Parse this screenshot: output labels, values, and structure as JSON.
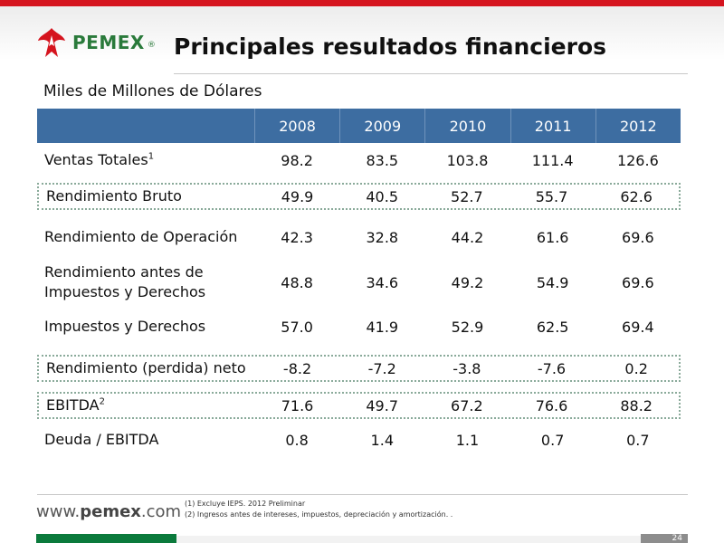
{
  "header": {
    "logo_text": "PEMEX",
    "logo_reg": "®",
    "title": "Principales resultados financieros"
  },
  "subtitle": "Miles de Millones de Dólares",
  "table": {
    "years": [
      "2008",
      "2009",
      "2010",
      "2011",
      "2012"
    ],
    "rows": [
      {
        "label": "Ventas Totales",
        "sup": "1",
        "values": [
          "98.2",
          "83.5",
          "103.8",
          "111.4",
          "126.6"
        ]
      },
      {
        "label": "Rendimiento Bruto",
        "values": [
          "49.9",
          "40.5",
          "52.7",
          "55.7",
          "62.6"
        ]
      },
      {
        "label": "Rendimiento de Operación",
        "values": [
          "42.3",
          "32.8",
          "44.2",
          "61.6",
          "69.6"
        ]
      },
      {
        "label_line1": "Rendimiento antes de",
        "label_line2": "Impuestos y Derechos",
        "values": [
          "48.8",
          "34.6",
          "49.2",
          "54.9",
          "69.6"
        ]
      },
      {
        "label": "Impuestos y Derechos",
        "values": [
          "57.0",
          "41.9",
          "52.9",
          "62.5",
          "69.4"
        ]
      },
      {
        "label": "Rendimiento (perdida) neto",
        "values": [
          "-8.2",
          "-7.2",
          "-3.8",
          "-7.6",
          "0.2"
        ]
      },
      {
        "label": "EBITDA",
        "sup": "2",
        "values": [
          "71.6",
          "49.7",
          "67.2",
          "76.6",
          "88.2"
        ]
      },
      {
        "label": "Deuda / EBITDA",
        "values": [
          "0.8",
          "1.4",
          "1.1",
          "0.7",
          "0.7"
        ]
      }
    ]
  },
  "footer": {
    "url_prefix": "www.",
    "url_domain": "pemex",
    "url_suffix": ".com",
    "note1": "(1)  Excluye IEPS. 2012 Preliminar",
    "note2": "(2)  Ingresos antes de intereses, impuestos, depreciación y amortización. .",
    "page_number": "24"
  },
  "colors": {
    "top_bar": "#d5141e",
    "table_header": "#3d6da1",
    "logo_green": "#2a7a3b",
    "footer_green": "#0b7a3c"
  }
}
